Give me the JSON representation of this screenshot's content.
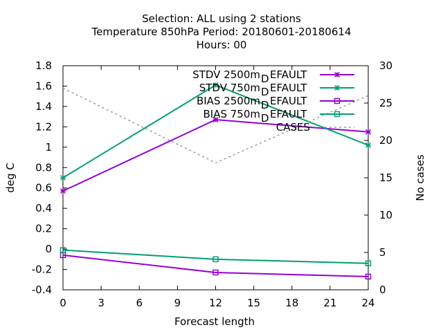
{
  "chart_data": {
    "type": "line",
    "title_lines": [
      "Selection: ALL using     2 stations",
      "Temperature 850hPa    Period: 20180601-20180614",
      "Hours:  00"
    ],
    "xlabel": "Forecast length",
    "ylabel": "deg C",
    "y2label": "No cases",
    "x_ticks": [
      0,
      3,
      6,
      9,
      12,
      15,
      18,
      21,
      24
    ],
    "xlim": [
      0,
      24
    ],
    "y_ticks": [
      "-0.4",
      "-0.2",
      "0",
      "0.2",
      "0.4",
      "0.6",
      "0.8",
      "1",
      "1.2",
      "1.4",
      "1.6",
      "1.8"
    ],
    "ylim": [
      -0.4,
      1.8
    ],
    "y2_ticks": [
      "0",
      "5",
      "10",
      "15",
      "20",
      "25",
      "30"
    ],
    "y2lim": [
      0,
      30
    ],
    "grid": false,
    "legend_position": "top-right",
    "series": [
      {
        "legend_main": "STDV 2500m",
        "legend_sub": "D",
        "legend_rest": "EFAULT",
        "x": [
          0,
          12,
          24
        ],
        "values": [
          0.57,
          1.27,
          1.15
        ],
        "color": "#9400d3",
        "marker": "star",
        "axis": "y"
      },
      {
        "legend_main": "STDV 750m",
        "legend_sub": "D",
        "legend_rest": "EFAULT",
        "x": [
          0,
          12,
          24
        ],
        "values": [
          0.7,
          1.61,
          1.02
        ],
        "color": "#009e73",
        "marker": "star",
        "axis": "y"
      },
      {
        "legend_main": "BIAS 2500m",
        "legend_sub": "D",
        "legend_rest": "EFAULT",
        "x": [
          0,
          12,
          24
        ],
        "values": [
          -0.06,
          -0.23,
          -0.27
        ],
        "color": "#9400d3",
        "marker": "square",
        "axis": "y"
      },
      {
        "legend_main": "BIAS 750m",
        "legend_sub": "D",
        "legend_rest": "EFAULT",
        "x": [
          0,
          12,
          24
        ],
        "values": [
          -0.01,
          -0.1,
          -0.14
        ],
        "color": "#009e73",
        "marker": "square",
        "axis": "y"
      },
      {
        "legend_main": "CASES",
        "legend_sub": "",
        "legend_rest": "",
        "x": [
          0,
          12,
          24
        ],
        "values": [
          27,
          17,
          26
        ],
        "color": "#999999",
        "marker": "none",
        "dashed": true,
        "axis": "y2"
      }
    ]
  }
}
